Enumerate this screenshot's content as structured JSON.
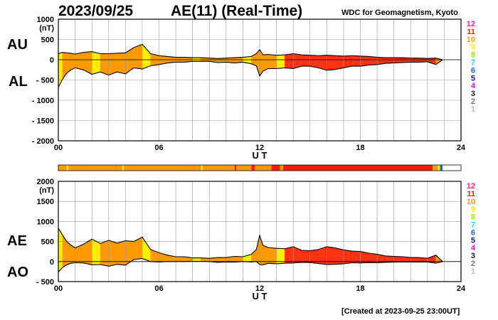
{
  "header": {
    "date": "2023/09/25",
    "title": "AE(11) (Real-Time)",
    "credit": "WDC for Geomagnetism, Kyoto"
  },
  "footer": {
    "created": "[Created at 2023-09-25 23:00UT]"
  },
  "side_labels": {
    "au": "AU",
    "al": "AL",
    "ae": "AE",
    "ao": "AO"
  },
  "stations_legend": [
    {
      "label": "12",
      "color": "#ff1f8c"
    },
    {
      "label": "11",
      "color": "#ff1a00"
    },
    {
      "label": "10",
      "color": "#ff9900"
    },
    {
      "label": "9",
      "color": "#ffee00"
    },
    {
      "label": "8",
      "color": "#99ee00"
    },
    {
      "label": "7",
      "color": "#22dddd"
    },
    {
      "label": "6",
      "color": "#1166ff"
    },
    {
      "label": "5",
      "color": "#1111cc"
    },
    {
      "label": "4",
      "color": "#dd11dd"
    },
    {
      "label": "3",
      "color": "#222222"
    },
    {
      "label": "2",
      "color": "#777777"
    },
    {
      "label": "1",
      "color": "#bbbbbb"
    }
  ],
  "chart_data": [
    {
      "type": "area",
      "name_top": "AU",
      "name_bottom": "AL",
      "xlabel": "U T",
      "unit_label": "(nT)",
      "xlim": [
        0,
        24
      ],
      "ylim": [
        -2000,
        1000
      ],
      "xticks": [
        0,
        6,
        12,
        18,
        24
      ],
      "xtick_labels": [
        "00",
        "06",
        "12",
        "18",
        "24"
      ],
      "yticks": [
        1000,
        500,
        0,
        -500,
        -1000,
        -1500,
        -2000
      ],
      "ytick_labels": [
        "1000",
        "500",
        "0",
        "- 500",
        "- 1000",
        "- 1500",
        "- 2000"
      ],
      "x": [
        0,
        0.25,
        0.5,
        0.75,
        1,
        1.5,
        2,
        2.5,
        3,
        3.5,
        4,
        4.5,
        5,
        5.5,
        6,
        6.5,
        7,
        7.5,
        8,
        8.5,
        9,
        9.5,
        10,
        10.5,
        11,
        11.5,
        11.8,
        12,
        12.2,
        12.5,
        13,
        13.5,
        14,
        14.5,
        15,
        15.5,
        16,
        16.5,
        17,
        17.5,
        18,
        18.5,
        19,
        19.5,
        20,
        20.5,
        21,
        21.5,
        22,
        22.5,
        22.9
      ],
      "series": [
        {
          "name": "AU",
          "values": [
            150,
            180,
            170,
            160,
            140,
            180,
            200,
            150,
            150,
            160,
            170,
            300,
            380,
            150,
            100,
            80,
            60,
            60,
            50,
            50,
            40,
            30,
            40,
            50,
            60,
            80,
            150,
            250,
            120,
            130,
            110,
            120,
            150,
            120,
            110,
            100,
            110,
            100,
            90,
            100,
            90,
            80,
            60,
            50,
            50,
            50,
            40,
            40,
            30,
            40,
            0
          ]
        },
        {
          "name": "AL",
          "values": [
            -680,
            -480,
            -330,
            -250,
            -200,
            -250,
            -360,
            -300,
            -380,
            -300,
            -350,
            -200,
            -230,
            -150,
            -120,
            -80,
            -60,
            -60,
            -40,
            -40,
            -40,
            -70,
            -60,
            -80,
            -60,
            -100,
            -150,
            -400,
            -280,
            -220,
            -220,
            -200,
            -220,
            -160,
            -160,
            -200,
            -260,
            -240,
            -200,
            -160,
            -160,
            -130,
            -120,
            -90,
            -80,
            -70,
            -60,
            -60,
            -50,
            -120,
            0
          ]
        }
      ]
    },
    {
      "type": "area",
      "name_top": "AE",
      "name_bottom": "AO",
      "xlabel": "U T",
      "unit_label": "(nT)",
      "xlim": [
        0,
        24
      ],
      "ylim": [
        -500,
        2000
      ],
      "xticks": [
        0,
        6,
        12,
        18,
        24
      ],
      "xtick_labels": [
        "00",
        "06",
        "12",
        "18",
        "24"
      ],
      "yticks": [
        2000,
        1500,
        1000,
        500,
        0,
        -500
      ],
      "ytick_labels": [
        "2000",
        "1500",
        "1000",
        "500",
        "0",
        "- 500"
      ],
      "x": [
        0,
        0.25,
        0.5,
        0.75,
        1,
        1.5,
        2,
        2.5,
        3,
        3.5,
        4,
        4.5,
        5,
        5.5,
        6,
        6.5,
        7,
        7.5,
        8,
        8.5,
        9,
        9.5,
        10,
        10.5,
        11,
        11.5,
        11.8,
        12,
        12.2,
        12.5,
        13,
        13.5,
        14,
        14.5,
        15,
        15.5,
        16,
        16.5,
        17,
        17.5,
        18,
        18.5,
        19,
        19.5,
        20,
        20.5,
        21,
        21.5,
        22,
        22.5,
        22.9
      ],
      "series": [
        {
          "name": "AE",
          "values": [
            830,
            660,
            500,
            410,
            340,
            430,
            560,
            450,
            530,
            460,
            520,
            500,
            610,
            300,
            220,
            160,
            120,
            120,
            90,
            90,
            80,
            100,
            100,
            130,
            120,
            180,
            300,
            650,
            400,
            350,
            330,
            320,
            370,
            280,
            270,
            300,
            370,
            340,
            290,
            260,
            250,
            210,
            180,
            140,
            130,
            120,
            100,
            100,
            80,
            160,
            0
          ]
        },
        {
          "name": "AO",
          "values": [
            -260,
            -150,
            -80,
            -45,
            -30,
            -35,
            -80,
            -75,
            -115,
            -70,
            -90,
            50,
            75,
            0,
            -10,
            0,
            0,
            0,
            5,
            5,
            0,
            -20,
            -10,
            -15,
            0,
            -10,
            0,
            -75,
            -80,
            -45,
            -55,
            -40,
            -35,
            -20,
            -25,
            -50,
            -75,
            -70,
            -55,
            -30,
            -35,
            -25,
            -30,
            -20,
            -15,
            -10,
            -10,
            -10,
            -10,
            -40,
            0
          ]
        }
      ]
    }
  ],
  "activity_bar": {
    "segments": [
      {
        "from": 0,
        "to": 0.5,
        "level": "10"
      },
      {
        "from": 0.5,
        "to": 0.6,
        "level": "9"
      },
      {
        "from": 0.6,
        "to": 3.8,
        "level": "10"
      },
      {
        "from": 3.8,
        "to": 3.9,
        "level": "9"
      },
      {
        "from": 3.9,
        "to": 8.5,
        "level": "10"
      },
      {
        "from": 8.5,
        "to": 8.6,
        "level": "9"
      },
      {
        "from": 8.6,
        "to": 10.5,
        "level": "10"
      },
      {
        "from": 10.5,
        "to": 10.6,
        "level": "11"
      },
      {
        "from": 10.6,
        "to": 11.5,
        "level": "10"
      },
      {
        "from": 11.5,
        "to": 11.7,
        "level": "11"
      },
      {
        "from": 11.7,
        "to": 12.7,
        "level": "10"
      },
      {
        "from": 12.7,
        "to": 13.2,
        "level": "11"
      },
      {
        "from": 13.2,
        "to": 13.4,
        "level": "10"
      },
      {
        "from": 13.4,
        "to": 22.3,
        "level": "11"
      },
      {
        "from": 22.3,
        "to": 22.6,
        "level": "10"
      },
      {
        "from": 22.6,
        "to": 22.75,
        "level": "9"
      },
      {
        "from": 22.75,
        "to": 22.9,
        "level": "6"
      }
    ]
  }
}
